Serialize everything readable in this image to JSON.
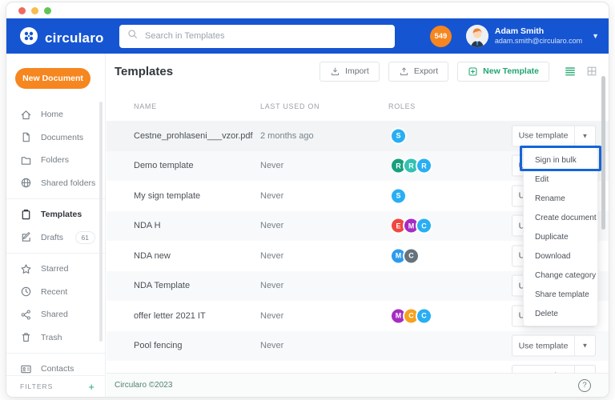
{
  "colors": {
    "brand_blue": "#1655D2",
    "accent_orange": "#F6861F",
    "accent_green": "#21A571",
    "highlight_blue": "#1565D8",
    "role_blue": "#29AEF3",
    "role_green": "#17A07E",
    "role_teal": "#33C1B2",
    "role_red": "#F2473F",
    "role_purple": "#A62BC3",
    "role_slate": "#66737D",
    "role_orange": "#F6A21F",
    "role_mid_blue": "#2B9BEF",
    "traffic_red": "#EE6B5F",
    "traffic_yellow": "#F5BE4F",
    "traffic_green": "#61C555"
  },
  "header": {
    "brand": "circularo",
    "search_placeholder": "Search in Templates",
    "notification_count": "549",
    "user_name": "Adam Smith",
    "user_email": "adam.smith@circularo.com"
  },
  "sidebar": {
    "new_document_label": "New Document",
    "items": [
      {
        "label": "Home",
        "icon": "home"
      },
      {
        "label": "Documents",
        "icon": "document"
      },
      {
        "label": "Folders",
        "icon": "folder"
      },
      {
        "label": "Shared folders",
        "icon": "globe",
        "divider_after": true
      },
      {
        "label": "Templates",
        "icon": "templates",
        "active": true
      },
      {
        "label": "Drafts",
        "icon": "drafts",
        "badge": "61",
        "divider_after": true
      },
      {
        "label": "Starred",
        "icon": "star"
      },
      {
        "label": "Recent",
        "icon": "clock"
      },
      {
        "label": "Shared",
        "icon": "share"
      },
      {
        "label": "Trash",
        "icon": "trash",
        "divider_after": true
      },
      {
        "label": "Contacts",
        "icon": "contacts"
      }
    ],
    "filters_label": "FILTERS"
  },
  "toolbar": {
    "title": "Templates",
    "import_label": "Import",
    "export_label": "Export",
    "new_template_label": "New Template"
  },
  "table": {
    "columns": [
      "NAME",
      "LAST USED ON",
      "ROLES"
    ],
    "use_template_label": "Use template",
    "rows": [
      {
        "name": "Cestne_prohlaseni___vzor.pdf",
        "last_used": "2 months ago",
        "roles": [
          {
            "letter": "S",
            "color": "role_blue"
          }
        ]
      },
      {
        "name": "Demo template",
        "last_used": "Never",
        "roles": [
          {
            "letter": "R",
            "color": "role_green"
          },
          {
            "letter": "R",
            "color": "role_teal"
          },
          {
            "letter": "R",
            "color": "role_blue"
          }
        ]
      },
      {
        "name": "My sign template",
        "last_used": "Never",
        "roles": [
          {
            "letter": "S",
            "color": "role_blue"
          }
        ]
      },
      {
        "name": "NDA H",
        "last_used": "Never",
        "roles": [
          {
            "letter": "E",
            "color": "role_red"
          },
          {
            "letter": "M",
            "color": "role_purple"
          },
          {
            "letter": "C",
            "color": "role_blue"
          }
        ]
      },
      {
        "name": "NDA new",
        "last_used": "Never",
        "roles": [
          {
            "letter": "M",
            "color": "role_mid_blue"
          },
          {
            "letter": "C",
            "color": "role_slate"
          }
        ]
      },
      {
        "name": "NDA Template",
        "last_used": "Never",
        "roles": []
      },
      {
        "name": "offer letter 2021 IT",
        "last_used": "Never",
        "roles": [
          {
            "letter": "M",
            "color": "role_purple"
          },
          {
            "letter": "C",
            "color": "role_orange"
          },
          {
            "letter": "C",
            "color": "role_blue"
          }
        ]
      },
      {
        "name": "Pool fencing",
        "last_used": "Never",
        "roles": []
      },
      {
        "name": "",
        "last_used": "",
        "roles": [],
        "partial": true
      }
    ]
  },
  "context_menu": {
    "items": [
      "Sign in bulk",
      "Edit",
      "Rename",
      "Create document",
      "Duplicate",
      "Download",
      "Change category",
      "Share template",
      "Delete"
    ],
    "highlighted_item": "Sign in bulk"
  },
  "footer": {
    "copyright": "Circularo ©2023"
  }
}
